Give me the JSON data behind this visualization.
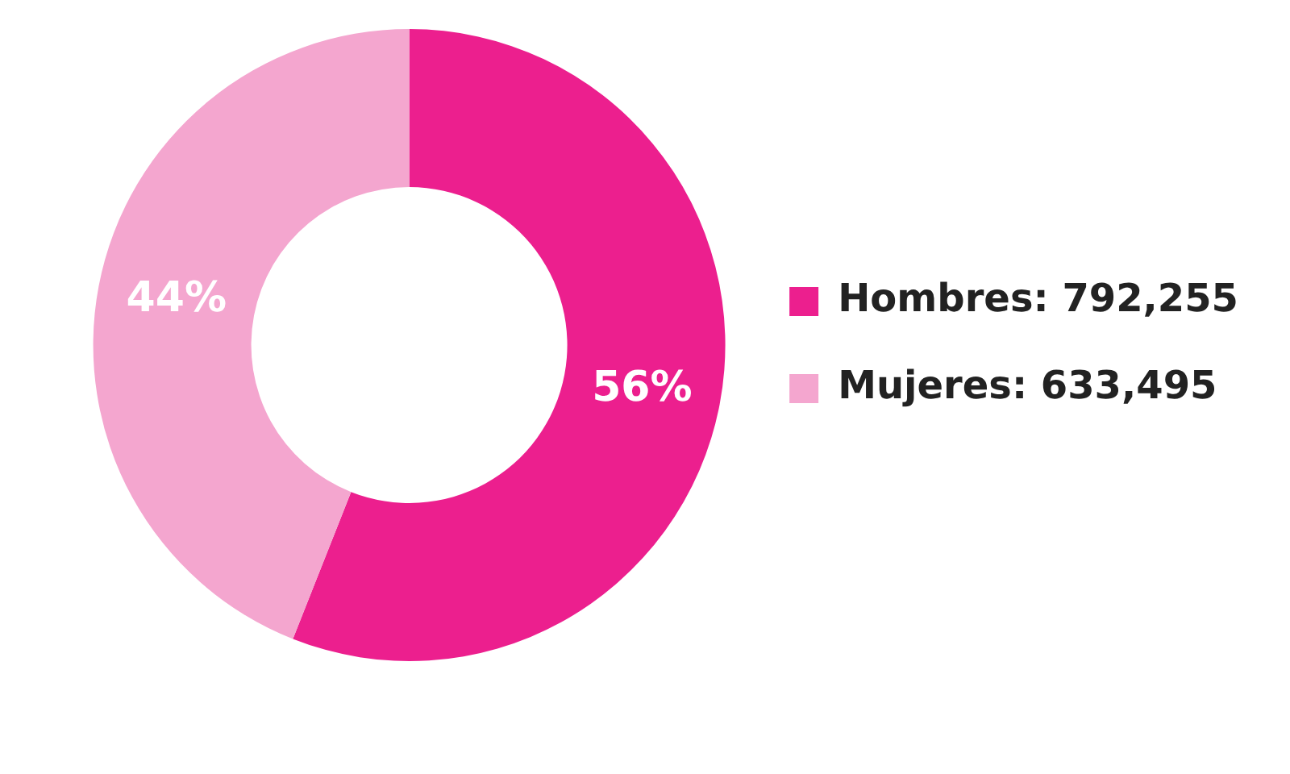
{
  "chart_data": {
    "type": "donut",
    "categories": [
      "Hombres: 792,255",
      "Mujeres: 633,495"
    ],
    "values": [
      56,
      44
    ],
    "colors": [
      "#ec1f8e",
      "#f4a6cf"
    ],
    "value_labels": [
      "56%",
      "44%"
    ],
    "legend": "right"
  }
}
